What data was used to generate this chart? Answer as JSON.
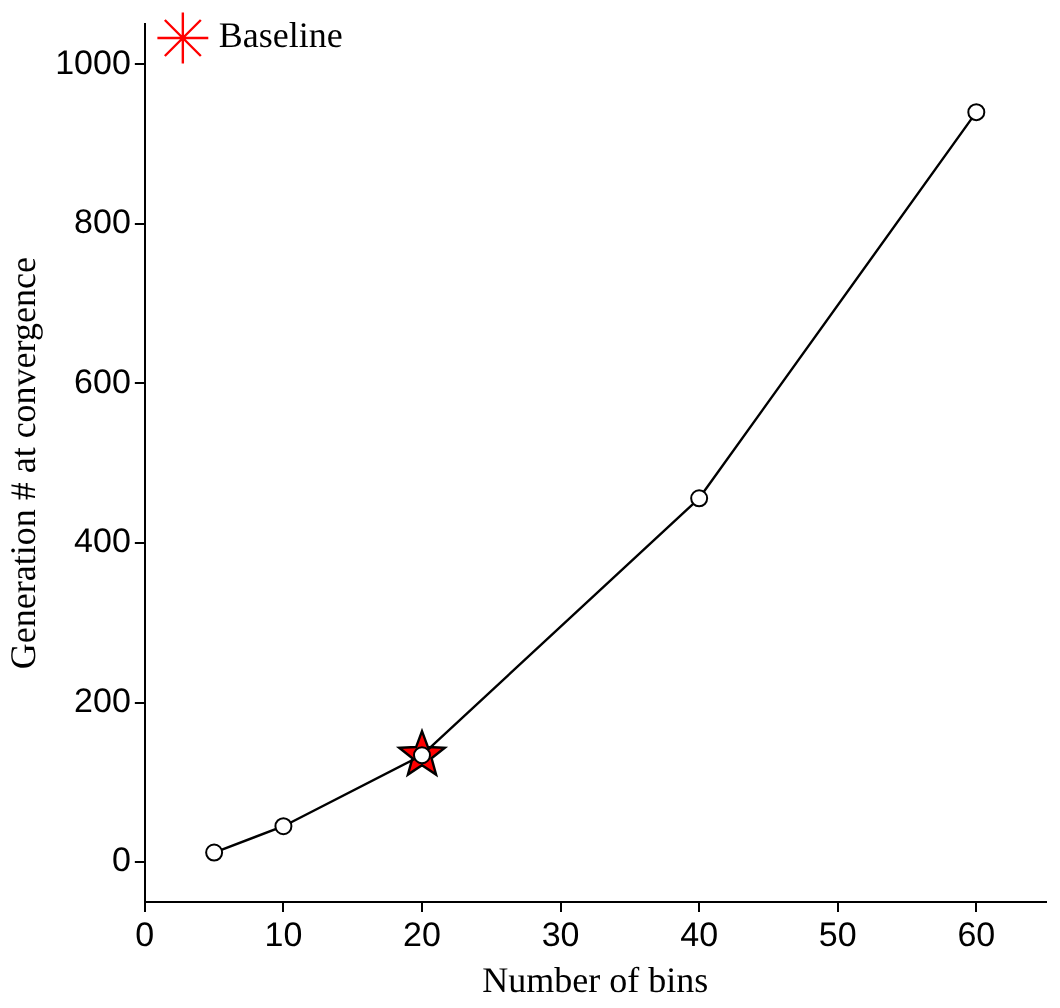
{
  "chart_data": {
    "type": "line",
    "xlabel": "Number of bins",
    "ylabel": "Generation # at convergence",
    "x": [
      5,
      10,
      20,
      40,
      60
    ],
    "series": [
      {
        "color": "#000000",
        "values": [
          12,
          45,
          134,
          456,
          940
        ],
        "marker": "circle"
      },
      {
        "name": "Baseline",
        "type": "scatter",
        "x": [
          20
        ],
        "values": [
          134
        ],
        "color": "#ff0000",
        "marker": "star"
      }
    ],
    "xlim": [
      0,
      65
    ],
    "xticks": [
      0,
      10,
      20,
      30,
      40,
      50,
      60
    ],
    "ylim": [
      -50,
      1050
    ],
    "yticks": [
      0,
      200,
      400,
      600,
      800,
      1000
    ],
    "grid": false,
    "legend": "top left",
    "line_style": "solid"
  }
}
